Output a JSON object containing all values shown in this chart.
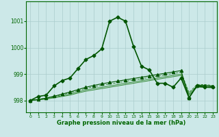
{
  "bg_color": "#cce8e8",
  "grid_color": "#aacccc",
  "line_color_main": "#006600",
  "line_color_light": "#338833",
  "xlabel": "Graphe pression niveau de la mer (hPa)",
  "ylabel_ticks": [
    998,
    999,
    1000,
    1001
  ],
  "xlim": [
    -0.5,
    23.5
  ],
  "ylim": [
    997.55,
    1001.75
  ],
  "series_main": {
    "x": [
      0,
      1,
      2,
      3,
      4,
      5,
      6,
      7,
      8,
      9,
      10,
      11,
      12,
      13,
      14,
      15,
      16,
      17,
      18,
      19,
      20,
      21,
      22,
      23
    ],
    "y": [
      998.0,
      998.15,
      998.2,
      998.55,
      998.75,
      998.85,
      999.2,
      999.55,
      999.7,
      999.95,
      1001.0,
      1001.15,
      1001.0,
      1000.05,
      999.3,
      999.15,
      998.65,
      998.65,
      998.5,
      998.85,
      998.1,
      998.55,
      998.5,
      998.5
    ],
    "color": "#005500",
    "linewidth": 1.2,
    "marker": "D",
    "markersize": 2.5,
    "linestyle": "-",
    "zorder": 5
  },
  "series_slope1": {
    "x": [
      0,
      1,
      2,
      3,
      4,
      5,
      6,
      7,
      8,
      9,
      10,
      11,
      12,
      13,
      14,
      15,
      16,
      17,
      18,
      19,
      20,
      21,
      22,
      23
    ],
    "y": [
      998.0,
      998.02,
      998.05,
      998.1,
      998.15,
      998.2,
      998.28,
      998.35,
      998.4,
      998.45,
      998.5,
      998.55,
      998.6,
      998.65,
      998.7,
      998.75,
      998.8,
      998.85,
      998.9,
      998.95,
      998.2,
      998.5,
      998.5,
      998.48
    ],
    "color": "#338833",
    "linewidth": 0.7,
    "marker": null,
    "markersize": 0,
    "linestyle": "-",
    "zorder": 2
  },
  "series_slope2": {
    "x": [
      0,
      1,
      2,
      3,
      4,
      5,
      6,
      7,
      8,
      9,
      10,
      11,
      12,
      13,
      14,
      15,
      16,
      17,
      18,
      19,
      20,
      21,
      22,
      23
    ],
    "y": [
      998.0,
      998.03,
      998.07,
      998.12,
      998.18,
      998.24,
      998.32,
      998.4,
      998.45,
      998.5,
      998.55,
      998.6,
      998.65,
      998.7,
      998.75,
      998.8,
      998.85,
      998.9,
      998.95,
      999.0,
      998.25,
      998.55,
      998.55,
      998.52
    ],
    "color": "#338833",
    "linewidth": 0.7,
    "marker": null,
    "markersize": 0,
    "linestyle": "-",
    "zorder": 2
  },
  "series_slope3": {
    "x": [
      0,
      1,
      2,
      3,
      4,
      5,
      6,
      7,
      8,
      9,
      10,
      11,
      12,
      13,
      14,
      15,
      16,
      17,
      18,
      19,
      20,
      21,
      22,
      23
    ],
    "y": [
      998.0,
      998.04,
      998.09,
      998.15,
      998.22,
      998.29,
      998.37,
      998.46,
      998.52,
      998.57,
      998.62,
      998.67,
      998.72,
      998.77,
      998.82,
      998.87,
      998.92,
      998.97,
      999.02,
      999.07,
      998.3,
      998.6,
      998.6,
      998.57
    ],
    "color": "#338833",
    "linewidth": 0.7,
    "marker": null,
    "markersize": 0,
    "linestyle": "--",
    "zorder": 2
  },
  "series_triangle": {
    "x": [
      0,
      1,
      2,
      3,
      4,
      5,
      6,
      7,
      8,
      9,
      10,
      11,
      12,
      13,
      14,
      15,
      16,
      17,
      18,
      19,
      20,
      21,
      22,
      23
    ],
    "y": [
      998.0,
      998.04,
      998.09,
      998.16,
      998.24,
      998.32,
      998.41,
      998.5,
      998.57,
      998.63,
      998.68,
      998.73,
      998.78,
      998.83,
      998.88,
      998.93,
      998.98,
      999.03,
      999.08,
      999.13,
      998.1,
      998.57,
      998.57,
      998.54
    ],
    "color": "#005500",
    "linewidth": 0.8,
    "marker": "^",
    "markersize": 3,
    "linestyle": "-",
    "zorder": 3
  }
}
